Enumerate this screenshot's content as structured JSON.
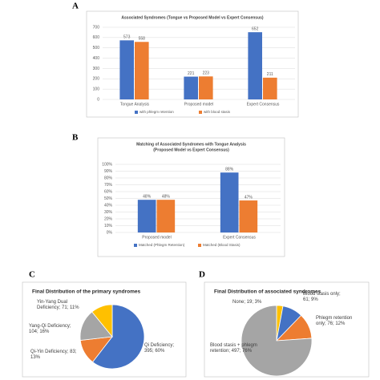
{
  "chart_data": [
    {
      "type": "bar",
      "label": "A",
      "title": "Associated Syndromes (Tongue vs Proposed Model vs Expert Consensus)",
      "categories": [
        "Tongue Analysis",
        "Proposed model",
        "Expert Consensus"
      ],
      "series": [
        {
          "name": "with phlegm retention",
          "color": "#4472c4",
          "values": [
            573,
            221,
            652
          ]
        },
        {
          "name": "with blood stasis",
          "color": "#ed7d31",
          "values": [
            558,
            223,
            211
          ]
        }
      ],
      "ylim": [
        0,
        700
      ],
      "yticks": [
        0,
        100,
        200,
        300,
        400,
        500,
        600,
        700
      ],
      "grid": true,
      "legend": "bottom"
    },
    {
      "type": "bar",
      "label": "B",
      "title": "Matching of Associated Syndromes with Tongue Analysis",
      "subtitle": "(Proposed Model vs Expert Consensus)",
      "categories": [
        "Proposed model",
        "Expert Consensus"
      ],
      "series": [
        {
          "name": "Matched (Phlegm Retention)",
          "color": "#4472c4",
          "values": [
            48,
            88
          ],
          "value_labels": [
            "48%",
            "88%"
          ]
        },
        {
          "name": "Matched (Blood Stasis)",
          "color": "#ed7d31",
          "values": [
            48,
            47
          ],
          "value_labels": [
            "48%",
            "47%"
          ]
        }
      ],
      "ylim": [
        0,
        100
      ],
      "yticks": [
        {
          "value": 0,
          "label": "0%"
        },
        {
          "value": 10,
          "label": "10%"
        },
        {
          "value": 20,
          "label": "20%"
        },
        {
          "value": 30,
          "label": "30%"
        },
        {
          "value": 40,
          "label": "40%"
        },
        {
          "value": 50,
          "label": "50%"
        },
        {
          "value": 60,
          "label": "60%"
        },
        {
          "value": 70,
          "label": "70%"
        },
        {
          "value": 80,
          "label": "80%"
        },
        {
          "value": 90,
          "label": "90%"
        },
        {
          "value": 100,
          "label": "100%"
        }
      ],
      "grid": true,
      "legend": "bottom"
    },
    {
      "type": "pie",
      "label": "C",
      "title": "Final Distribution of the primary syndromes",
      "categories": [
        "Qi Deficiency; 395; 60%",
        "Qi-Yin Deficiency; 83; 13%",
        "Yang-Qi Deficiency; 104; 16%",
        "Yin-Yang Dual Deficiency; 71; 11%"
      ],
      "values": [
        395,
        83,
        104,
        71
      ],
      "colors": [
        "#4472c4",
        "#ed7d31",
        "#a5a5a5",
        "#ffc000"
      ]
    },
    {
      "type": "pie",
      "label": "D",
      "title": "Final Distribution of associated syndromes",
      "categories": [
        "None; 19; 3%",
        "Blood stasis only; 61; 9%",
        "Phlegm retention only; 76; 12%",
        "Blood stasis + phlegm retention; 497; 76%"
      ],
      "values": [
        19,
        61,
        76,
        497
      ],
      "colors": [
        "#ffc000",
        "#4472c4",
        "#ed7d31",
        "#a5a5a5"
      ]
    }
  ]
}
